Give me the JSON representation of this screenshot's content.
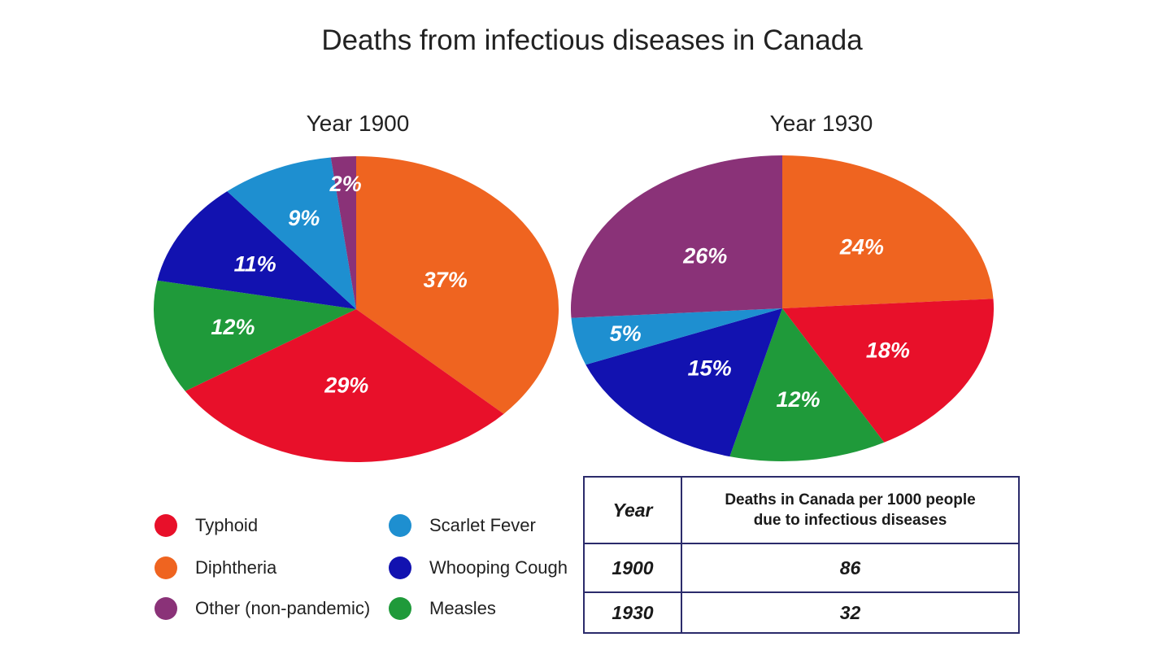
{
  "title": "Deaths from infectious diseases in Canada",
  "colors": {
    "Typhoid": "#e8102a",
    "Diphtheria": "#ef6420",
    "Other (non-pandemic)": "#8a3278",
    "Scarlet Fever": "#1e8fd0",
    "Whooping Cough": "#1212b0",
    "Measles": "#1f9a3a"
  },
  "legend": [
    {
      "label": "Typhoid",
      "color": "#e8102a"
    },
    {
      "label": "Diphtheria",
      "color": "#ef6420"
    },
    {
      "label": "Other (non-pandemic)",
      "color": "#8a3278"
    },
    {
      "label": "Scarlet Fever",
      "color": "#1e8fd0"
    },
    {
      "label": "Whooping Cough",
      "color": "#1212b0"
    },
    {
      "label": "Measles",
      "color": "#1f9a3a"
    }
  ],
  "chart_data": [
    {
      "type": "pie",
      "title": "Year 1900",
      "slices": [
        {
          "label": "Diphtheria",
          "value": 37,
          "text": "37%"
        },
        {
          "label": "Typhoid",
          "value": 29,
          "text": "29%"
        },
        {
          "label": "Measles",
          "value": 12,
          "text": "12%"
        },
        {
          "label": "Whooping Cough",
          "value": 11,
          "text": "11%"
        },
        {
          "label": "Scarlet Fever",
          "value": 9,
          "text": "9%"
        },
        {
          "label": "Other (non-pandemic)",
          "value": 2,
          "text": "2%"
        }
      ]
    },
    {
      "type": "pie",
      "title": "Year 1930",
      "slices": [
        {
          "label": "Diphtheria",
          "value": 24,
          "text": "24%"
        },
        {
          "label": "Typhoid",
          "value": 18,
          "text": "18%"
        },
        {
          "label": "Measles",
          "value": 12,
          "text": "12%"
        },
        {
          "label": "Whooping Cough",
          "value": 15,
          "text": "15%"
        },
        {
          "label": "Scarlet Fever",
          "value": 5,
          "text": "5%"
        },
        {
          "label": "Other (non-pandemic)",
          "value": 26,
          "text": "26%"
        }
      ]
    },
    {
      "type": "table",
      "columns": [
        "Year",
        "Deaths in Canada per 1000 people due to infectious diseases"
      ],
      "rows": [
        [
          "1900",
          "86"
        ],
        [
          "1930",
          "32"
        ]
      ]
    }
  ],
  "table": {
    "header_year": "Year",
    "header_deaths_line1": "Deaths in Canada per 1000 people",
    "header_deaths_line2": "due to infectious diseases",
    "rows": [
      {
        "year": "1900",
        "value": "86"
      },
      {
        "year": "1930",
        "value": "32"
      }
    ]
  }
}
